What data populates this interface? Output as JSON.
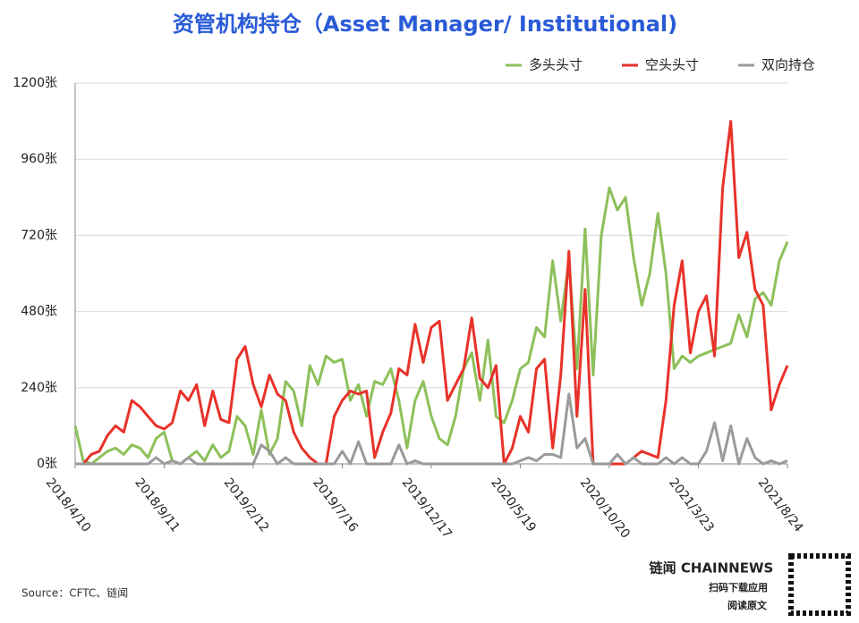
{
  "chart_data": {
    "type": "line",
    "title": "资管机构持仓（Asset Manager/ Institutional)",
    "categories": [
      "2018/4/10",
      null,
      null,
      null,
      null,
      null,
      null,
      null,
      null,
      null,
      null,
      "2018/9/11",
      null,
      null,
      null,
      null,
      null,
      null,
      null,
      null,
      null,
      null,
      "2019/2/12",
      null,
      null,
      null,
      null,
      null,
      null,
      null,
      null,
      null,
      null,
      "2019/7/16",
      null,
      null,
      null,
      null,
      null,
      null,
      null,
      null,
      null,
      null,
      "2019/12/17",
      null,
      null,
      null,
      null,
      null,
      null,
      null,
      null,
      null,
      null,
      "2020/5/19",
      null,
      null,
      null,
      null,
      null,
      null,
      null,
      null,
      null,
      null,
      "2020/10/20",
      null,
      null,
      null,
      null,
      null,
      null,
      null,
      null,
      null,
      null,
      "2021/3/23",
      null,
      null,
      null,
      null,
      null,
      null,
      null,
      null,
      null,
      null,
      "2021/8/24"
    ],
    "series": [
      {
        "name": "多头头寸",
        "color": "#8dc05a",
        "values": [
          120,
          10,
          0,
          20,
          40,
          50,
          30,
          60,
          50,
          20,
          80,
          100,
          10,
          0,
          20,
          40,
          10,
          60,
          20,
          40,
          150,
          120,
          30,
          170,
          30,
          80,
          260,
          230,
          120,
          310,
          250,
          340,
          320,
          330,
          200,
          250,
          150,
          260,
          250,
          300,
          200,
          50,
          200,
          260,
          150,
          80,
          60,
          150,
          300,
          350,
          200,
          390,
          150,
          130,
          200,
          300,
          320,
          430,
          400,
          640,
          450,
          640,
          300,
          740,
          280,
          720,
          870,
          800,
          840,
          650,
          500,
          600,
          790,
          600,
          300,
          340,
          320,
          340,
          350,
          360,
          370,
          380,
          470,
          400,
          520,
          540,
          500,
          640,
          700
        ]
      },
      {
        "name": "空头头寸",
        "color": "#e8322a",
        "values": [
          0,
          0,
          30,
          40,
          90,
          120,
          100,
          200,
          180,
          150,
          120,
          110,
          130,
          230,
          200,
          250,
          120,
          230,
          140,
          130,
          330,
          370,
          250,
          180,
          280,
          220,
          200,
          100,
          50,
          20,
          0,
          0,
          150,
          200,
          230,
          220,
          230,
          20,
          100,
          160,
          300,
          280,
          440,
          320,
          430,
          450,
          200,
          250,
          300,
          460,
          270,
          240,
          310,
          0,
          50,
          150,
          100,
          300,
          330,
          50,
          280,
          670,
          150,
          550,
          0,
          0,
          0,
          0,
          0,
          20,
          40,
          30,
          20,
          200,
          500,
          640,
          350,
          480,
          530,
          340,
          870,
          1080,
          650,
          730,
          550,
          500,
          170,
          250,
          310
        ]
      },
      {
        "name": "双向持仓",
        "color": "#9a9a9a",
        "values": [
          0,
          0,
          0,
          0,
          0,
          0,
          0,
          0,
          0,
          0,
          20,
          0,
          10,
          0,
          20,
          0,
          0,
          0,
          0,
          0,
          0,
          0,
          0,
          60,
          40,
          0,
          20,
          0,
          0,
          0,
          0,
          0,
          0,
          40,
          0,
          70,
          0,
          0,
          0,
          0,
          60,
          0,
          10,
          0,
          0,
          0,
          0,
          0,
          0,
          0,
          0,
          0,
          0,
          0,
          0,
          10,
          20,
          10,
          30,
          30,
          20,
          220,
          50,
          80,
          0,
          0,
          0,
          30,
          0,
          20,
          0,
          0,
          0,
          20,
          0,
          20,
          0,
          0,
          40,
          130,
          10,
          120,
          0,
          80,
          20,
          0,
          10,
          0,
          10
        ]
      }
    ],
    "ylim": [
      0,
      1200
    ],
    "yticks": [
      {
        "value": 0,
        "label": "0张"
      },
      {
        "value": 240,
        "label": "240张"
      },
      {
        "value": 480,
        "label": "480张"
      },
      {
        "value": 720,
        "label": "720张"
      },
      {
        "value": 960,
        "label": "960张"
      },
      {
        "value": 1200,
        "label": "1200张"
      }
    ],
    "grid": true,
    "legend": "top-right"
  },
  "footer": {
    "source": "Source：CFTC、链闻",
    "brand": "链闻 CHAINNEWS",
    "download": "扫码下载应用",
    "read": "阅读原文"
  }
}
